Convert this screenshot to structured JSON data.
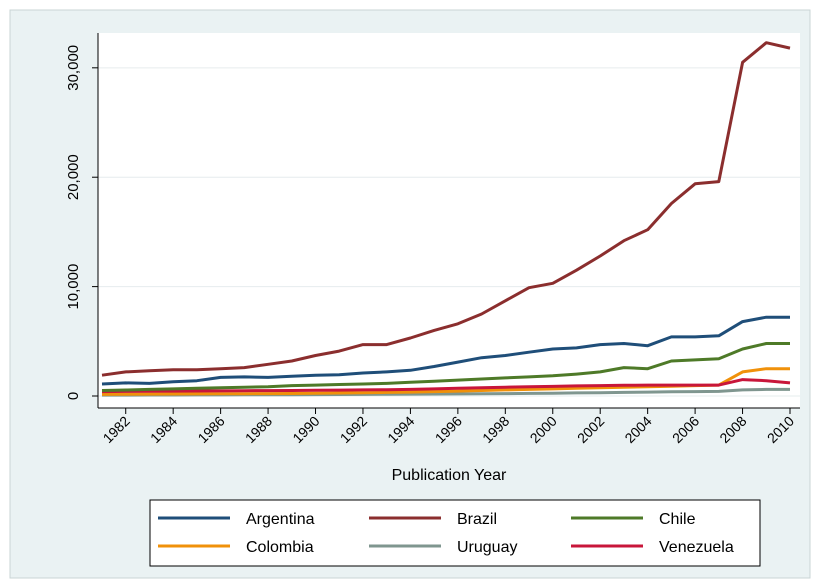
{
  "chart_data": {
    "type": "line",
    "title": "",
    "xlabel": "Publication Year",
    "ylabel": "",
    "xlim": [
      1981,
      2010
    ],
    "ylim": [
      0,
      33000
    ],
    "y_ticks": [
      0,
      10000,
      20000,
      30000
    ],
    "y_tick_labels": [
      "0",
      "10,000",
      "20,000",
      "30,000"
    ],
    "x_ticks": [
      1982,
      1984,
      1986,
      1988,
      1990,
      1992,
      1994,
      1996,
      1998,
      2000,
      2002,
      2004,
      2006,
      2008,
      2010
    ],
    "x_tick_labels": [
      "1982",
      "1984",
      "1986",
      "1988",
      "1990",
      "1992",
      "1994",
      "1996",
      "1998",
      "2000",
      "2002",
      "2004",
      "2006",
      "2008",
      "2010"
    ],
    "grid": true,
    "legend_position": "bottom",
    "x": [
      1981,
      1982,
      1983,
      1984,
      1985,
      1986,
      1987,
      1988,
      1989,
      1990,
      1991,
      1992,
      1993,
      1994,
      1995,
      1996,
      1997,
      1998,
      1999,
      2000,
      2001,
      2002,
      2003,
      2004,
      2005,
      2006,
      2007,
      2008,
      2009,
      2010
    ],
    "series": [
      {
        "name": "Argentina",
        "color": "#1f4e79",
        "values": [
          1100,
          1200,
          1150,
          1300,
          1400,
          1700,
          1750,
          1700,
          1800,
          1900,
          1950,
          2100,
          2200,
          2350,
          2700,
          3100,
          3500,
          3700,
          4000,
          4300,
          4400,
          4700,
          4800,
          4600,
          5400,
          5400,
          5500,
          6800,
          7200,
          7200
        ]
      },
      {
        "name": "Brazil",
        "color": "#8b2e2e",
        "values": [
          1900,
          2200,
          2300,
          2400,
          2400,
          2500,
          2600,
          2900,
          3200,
          3700,
          4100,
          4700,
          4700,
          5300,
          6000,
          6600,
          7500,
          8700,
          9900,
          10300,
          11500,
          12800,
          14200,
          15200,
          17600,
          19400,
          19600,
          30500,
          32300,
          31800
        ]
      },
      {
        "name": "Chile",
        "color": "#4e7a28",
        "values": [
          500,
          550,
          600,
          650,
          700,
          750,
          800,
          850,
          950,
          1000,
          1050,
          1100,
          1150,
          1250,
          1350,
          1450,
          1550,
          1650,
          1750,
          1850,
          2000,
          2200,
          2600,
          2500,
          3200,
          3300,
          3400,
          4300,
          4800,
          4800
        ]
      },
      {
        "name": "Colombia",
        "color": "#f0910a",
        "values": [
          150,
          160,
          170,
          180,
          190,
          200,
          210,
          220,
          230,
          250,
          270,
          300,
          330,
          360,
          400,
          450,
          500,
          560,
          600,
          650,
          700,
          750,
          800,
          850,
          900,
          950,
          1000,
          2200,
          2500,
          2500
        ]
      },
      {
        "name": "Uruguay",
        "color": "#7f968f",
        "values": [
          80,
          85,
          90,
          95,
          100,
          105,
          110,
          115,
          120,
          130,
          140,
          150,
          160,
          170,
          180,
          190,
          200,
          220,
          240,
          260,
          280,
          300,
          330,
          360,
          380,
          400,
          420,
          560,
          600,
          600
        ]
      },
      {
        "name": "Venezuela",
        "color": "#c8163a",
        "values": [
          400,
          420,
          430,
          450,
          460,
          470,
          480,
          490,
          500,
          520,
          540,
          560,
          580,
          600,
          650,
          700,
          750,
          800,
          850,
          880,
          920,
          950,
          980,
          1000,
          1000,
          1000,
          1000,
          1500,
          1400,
          1200
        ]
      }
    ]
  }
}
